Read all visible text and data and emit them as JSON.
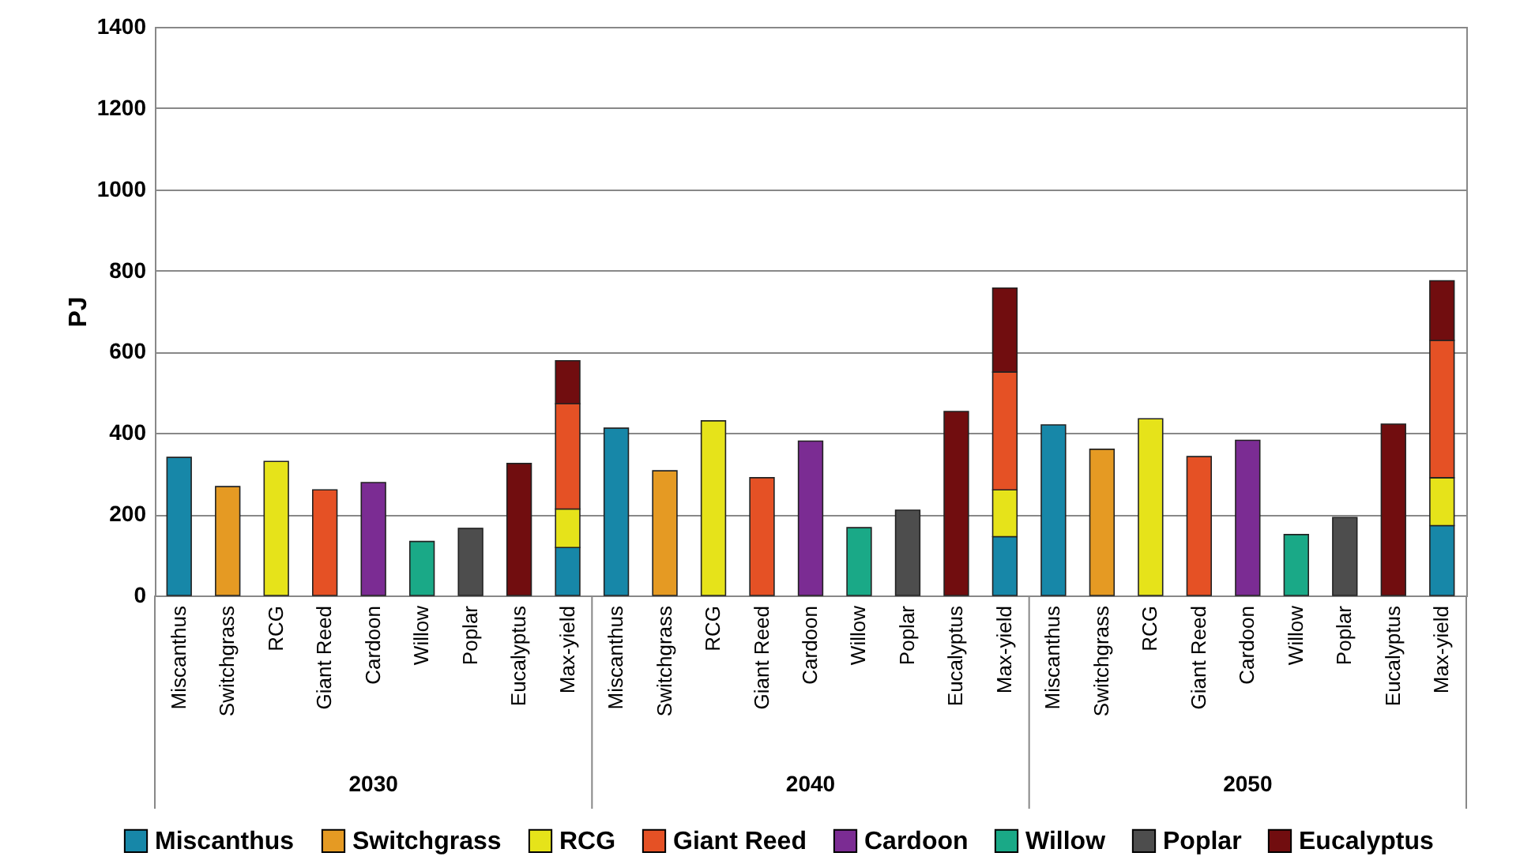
{
  "chart_data": {
    "type": "bar",
    "stacked": true,
    "ylabel": "PJ",
    "ylim": [
      0,
      1400
    ],
    "yticks": [
      0,
      200,
      400,
      600,
      800,
      1000,
      1200,
      1400
    ],
    "grid": "y",
    "legend": "bottom",
    "categories": [
      "Miscanthus",
      "Switchgrass",
      "RCG",
      "Giant Reed",
      "Cardoon",
      "Willow",
      "Poplar",
      "Eucalyptus",
      "Max-yield",
      "Miscanthus",
      "Switchgrass",
      "RCG",
      "Giant Reed",
      "Cardoon",
      "Willow",
      "Poplar",
      "Eucalyptus",
      "Max-yield",
      "Miscanthus",
      "Switchgrass",
      "RCG",
      "Giant Reed",
      "Cardoon",
      "Willow",
      "Poplar",
      "Eucalyptus",
      "Max-yield"
    ],
    "annotations": [
      "2030",
      "2040",
      "2050"
    ],
    "series": [
      {
        "name": "Miscanthus",
        "color": "#1787a8",
        "values": [
          340,
          null,
          null,
          null,
          null,
          null,
          null,
          null,
          118,
          412,
          null,
          null,
          null,
          null,
          null,
          null,
          null,
          145,
          420,
          null,
          null,
          null,
          null,
          null,
          null,
          null,
          172
        ]
      },
      {
        "name": "Switchgrass",
        "color": "#e59a23",
        "values": [
          null,
          268,
          null,
          null,
          null,
          null,
          null,
          null,
          null,
          null,
          307,
          null,
          null,
          null,
          null,
          null,
          null,
          null,
          null,
          360,
          null,
          null,
          null,
          null,
          null,
          null,
          null
        ]
      },
      {
        "name": "RCG",
        "color": "#e6e31a",
        "values": [
          null,
          null,
          330,
          null,
          null,
          null,
          null,
          null,
          95,
          null,
          null,
          430,
          null,
          null,
          null,
          null,
          null,
          115,
          null,
          null,
          435,
          null,
          null,
          null,
          null,
          null,
          118
        ]
      },
      {
        "name": "Giant Reed",
        "color": "#e55125",
        "values": [
          null,
          null,
          null,
          260,
          null,
          null,
          null,
          null,
          259,
          null,
          null,
          null,
          290,
          null,
          null,
          null,
          null,
          290,
          null,
          null,
          null,
          342,
          null,
          null,
          null,
          null,
          338
        ]
      },
      {
        "name": "Cardoon",
        "color": "#7b2c93",
        "values": [
          null,
          null,
          null,
          null,
          278,
          null,
          null,
          null,
          null,
          null,
          null,
          null,
          null,
          380,
          null,
          null,
          null,
          null,
          null,
          null,
          null,
          null,
          382,
          null,
          null,
          null,
          null
        ]
      },
      {
        "name": "Willow",
        "color": "#1aa987",
        "values": [
          null,
          null,
          null,
          null,
          null,
          133,
          null,
          null,
          null,
          null,
          null,
          null,
          null,
          null,
          167,
          null,
          null,
          null,
          null,
          null,
          null,
          null,
          null,
          150,
          null,
          null,
          null
        ]
      },
      {
        "name": "Poplar",
        "color": "#4d4d4d",
        "values": [
          null,
          null,
          null,
          null,
          null,
          null,
          165,
          null,
          null,
          null,
          null,
          null,
          null,
          null,
          null,
          210,
          null,
          null,
          null,
          null,
          null,
          null,
          null,
          null,
          192,
          null,
          null
        ]
      },
      {
        "name": "Eucalyptus",
        "color": "#710d0f",
        "values": [
          null,
          null,
          null,
          null,
          null,
          null,
          null,
          325,
          106,
          null,
          null,
          null,
          null,
          null,
          null,
          null,
          453,
          207,
          null,
          null,
          null,
          null,
          null,
          null,
          null,
          422,
          147
        ]
      }
    ]
  }
}
